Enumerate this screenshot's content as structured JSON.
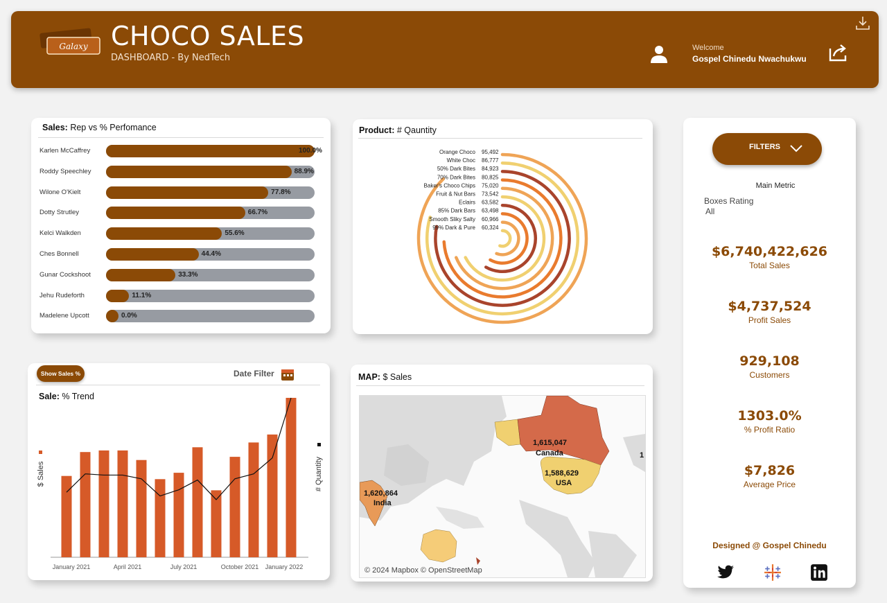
{
  "header": {
    "title": "CHOCO SALES",
    "subtitle": "DASHBOARD - By NedTech",
    "welcome": "Welcome",
    "user": "Gospel Chinedu Nwachukwu",
    "logo_text": "Galaxy",
    "icons": [
      "user-icon",
      "share-icon",
      "download-icon"
    ]
  },
  "colors": {
    "brand": "#8b4a06",
    "bar_track": "#979ba2",
    "bar_orange": "#d65a28",
    "gold": "#f0d070",
    "rust": "#a9442c",
    "orange": "#e97b2e",
    "light_orange": "#efa456"
  },
  "sales_rep": {
    "title_bold": "Sales:",
    "title_rest": "Rep vs  % Perfomance",
    "chart_data": {
      "type": "bar",
      "categories": [
        "Karlen McCaffrey",
        "Roddy Speechley",
        "Wilone O'Kielt",
        "Dotty Strutley",
        "Kelci Walkden",
        "Ches Bonnell",
        "Gunar Cockshoot",
        "Jehu Rudeforth",
        "Madelene Upcott"
      ],
      "values": [
        100.0,
        88.9,
        77.8,
        66.7,
        55.6,
        44.4,
        33.3,
        11.1,
        0.0
      ],
      "labels": [
        "100.0%",
        "88.9%",
        "77.8%",
        "66.7%",
        "55.6%",
        "44.4%",
        "33.3%",
        "11.1%",
        "0.0%"
      ],
      "xlim": [
        0,
        100
      ]
    }
  },
  "product": {
    "title_bold": "Product:",
    "title_rest": "# Qauntity",
    "chart_data": {
      "type": "radial-bar",
      "categories": [
        "Orange Choco",
        "White Choc",
        "50% Dark Bites",
        "70% Dark Bites",
        "Baker's Choco Chips",
        "Fruit & Nut Bars",
        "Eclairs",
        "85% Dark Bars",
        "Smooth Sliky Salty",
        "99% Dark & Pure"
      ],
      "values": [
        95492,
        86777,
        84923,
        80825,
        75020,
        73542,
        63582,
        63498,
        60966,
        60324
      ],
      "labels": [
        "95,492",
        "86,777",
        "84,923",
        "80,825",
        "75,020",
        "73,542",
        "63,582",
        "63,498",
        "60,966",
        "60,324"
      ],
      "colors": [
        "#efa456",
        "#f0d070",
        "#a9442c",
        "#e97b2e",
        "#efa456",
        "#f0d070",
        "#a9442c",
        "#e97b2e",
        "#efa456",
        "#f0d070"
      ]
    }
  },
  "trend": {
    "button": "Show Sales %",
    "date_filter": "Date Filter",
    "title_bold": "Sale:",
    "title_rest": "% Trend",
    "chart_data": {
      "type": "bar",
      "ylabel": "$ Sales",
      "y2label": "# Quantity",
      "x_ticks": [
        "January 2021",
        "April 2021",
        "July 2021",
        "October 2021",
        "January 2022"
      ],
      "series": [
        {
          "name": "$ Sales",
          "type": "bar",
          "values": [
            51,
            66,
            67,
            67,
            61,
            49,
            53,
            69,
            42,
            63,
            72,
            77,
            100
          ]
        },
        {
          "name": "# Quantity",
          "type": "line",
          "values": [
            53,
            68,
            67,
            67,
            64,
            50,
            55,
            63,
            47,
            64,
            68,
            81,
            130
          ]
        }
      ],
      "ylim": [
        0,
        100
      ]
    }
  },
  "map": {
    "title_bold": "MAP:",
    "title_rest": "$ Sales",
    "attribution": "© 2024 Mapbox © OpenStreetMap",
    "chart_data": {
      "type": "map",
      "regions": [
        {
          "name": "Canada",
          "value": "1,615,047"
        },
        {
          "name": "USA",
          "value": "1,588,629"
        },
        {
          "name": "India",
          "value": "1,620,864"
        }
      ],
      "edge_label": "1"
    }
  },
  "sidebar": {
    "filters": "FILTERS",
    "main_metric": "Main Metric",
    "filter_label": "Boxes Rating",
    "filter_value": "All",
    "kpis": [
      {
        "value": "$6,740,422,626",
        "label": "Total Sales"
      },
      {
        "value": "$4,737,524",
        "label": "Profit  Sales"
      },
      {
        "value": "929,108",
        "label": "Customers"
      },
      {
        "value": "1303.0%",
        "label": "% Profit  Ratio"
      },
      {
        "value": "$7,826",
        "label": "Average Price"
      }
    ],
    "designed": "Designed @ Gospel Chinedu",
    "social": [
      "twitter-icon",
      "tableau-icon",
      "linkedin-icon"
    ]
  }
}
